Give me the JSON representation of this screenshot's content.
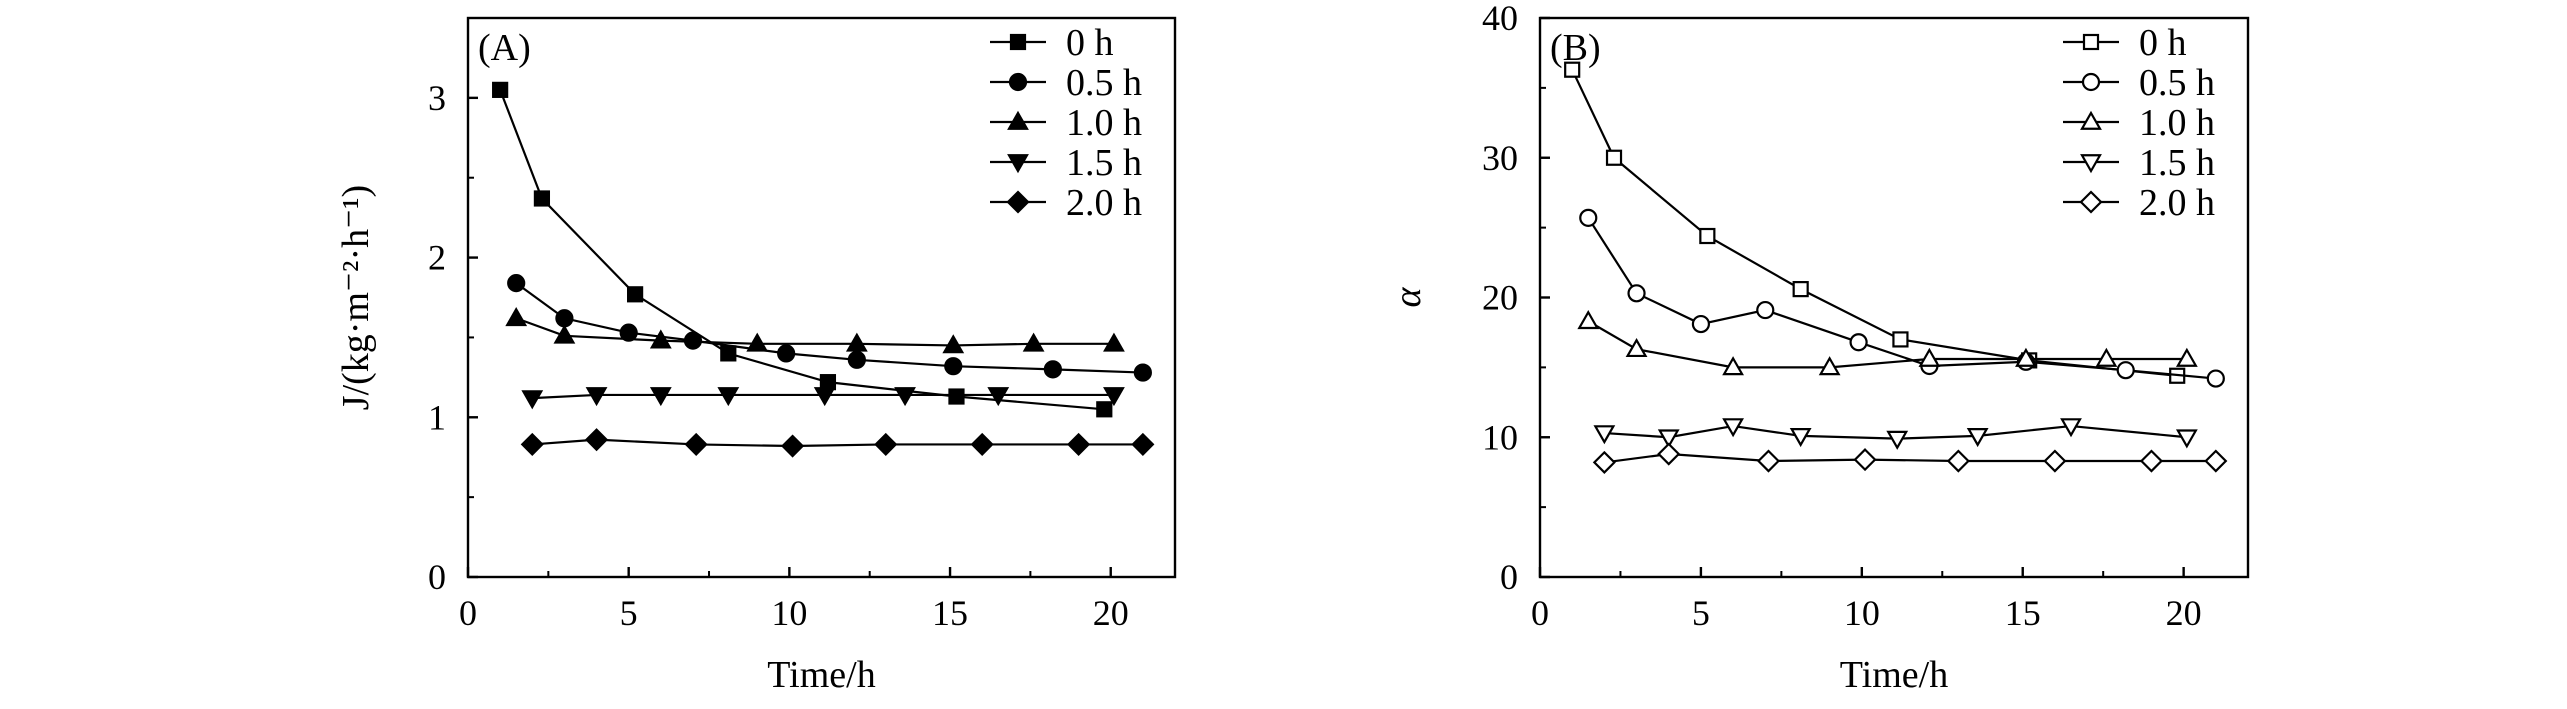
{
  "chart_data": [
    {
      "type": "line",
      "panel_label": "(A)",
      "xlabel": "Time/h",
      "ylabel": "J/(kg·m⁻²·h⁻¹)",
      "xlim": [
        0,
        22
      ],
      "ylim": [
        0,
        3.5
      ],
      "xticks": [
        0,
        5,
        10,
        15,
        20
      ],
      "yticks": [
        0,
        1,
        2,
        3
      ],
      "legend_position": "top-right",
      "series": [
        {
          "name": "0 h",
          "marker": "square",
          "filled": true,
          "x": [
            1.0,
            2.3,
            5.2,
            8.1,
            11.2,
            15.2,
            19.8
          ],
          "y": [
            3.05,
            2.37,
            1.77,
            1.4,
            1.22,
            1.13,
            1.05
          ]
        },
        {
          "name": "0.5 h",
          "marker": "circle",
          "filled": true,
          "x": [
            1.5,
            3.0,
            5.0,
            7.0,
            9.9,
            12.1,
            15.1,
            18.2,
            21.0
          ],
          "y": [
            1.84,
            1.62,
            1.53,
            1.48,
            1.4,
            1.36,
            1.32,
            1.3,
            1.28
          ]
        },
        {
          "name": "1.0 h",
          "marker": "triangle-up",
          "filled": true,
          "x": [
            1.5,
            3.0,
            6.0,
            9.0,
            12.1,
            15.1,
            17.6,
            20.1
          ],
          "y": [
            1.62,
            1.51,
            1.48,
            1.46,
            1.46,
            1.45,
            1.46,
            1.46
          ]
        },
        {
          "name": "1.5 h",
          "marker": "triangle-down",
          "filled": true,
          "x": [
            2.0,
            4.0,
            6.0,
            8.1,
            11.1,
            13.6,
            16.5,
            20.1
          ],
          "y": [
            1.12,
            1.14,
            1.14,
            1.14,
            1.14,
            1.14,
            1.14,
            1.14
          ]
        },
        {
          "name": "2.0 h",
          "marker": "diamond",
          "filled": true,
          "x": [
            2.0,
            4.0,
            7.1,
            10.1,
            13.0,
            16.0,
            19.0,
            21.0
          ],
          "y": [
            0.83,
            0.86,
            0.83,
            0.82,
            0.83,
            0.83,
            0.83,
            0.83
          ]
        }
      ]
    },
    {
      "type": "line",
      "panel_label": "(B)",
      "xlabel": "Time/h",
      "ylabel": "α",
      "xlim": [
        0,
        22
      ],
      "ylim": [
        0,
        40
      ],
      "xticks": [
        0,
        5,
        10,
        15,
        20
      ],
      "yticks": [
        0,
        10,
        20,
        30,
        40
      ],
      "legend_position": "top-right",
      "series": [
        {
          "name": "0 h",
          "marker": "square",
          "filled": false,
          "x": [
            1.0,
            2.3,
            5.2,
            8.1,
            11.2,
            15.2,
            19.8
          ],
          "y": [
            36.3,
            30.0,
            24.4,
            20.6,
            17.0,
            15.5,
            14.4
          ]
        },
        {
          "name": "0.5 h",
          "marker": "circle",
          "filled": false,
          "x": [
            1.5,
            3.0,
            5.0,
            7.0,
            9.9,
            12.1,
            15.1,
            18.2,
            21.0
          ],
          "y": [
            25.7,
            20.3,
            18.1,
            19.1,
            16.8,
            15.1,
            15.4,
            14.8,
            14.2
          ]
        },
        {
          "name": "1.0 h",
          "marker": "triangle-up",
          "filled": false,
          "x": [
            1.5,
            3.0,
            6.0,
            9.0,
            12.1,
            15.1,
            17.6,
            20.1
          ],
          "y": [
            18.3,
            16.3,
            15.0,
            15.0,
            15.6,
            15.6,
            15.6,
            15.6
          ]
        },
        {
          "name": "1.5 h",
          "marker": "triangle-down",
          "filled": false,
          "x": [
            2.0,
            4.0,
            6.0,
            8.1,
            11.1,
            13.6,
            16.5,
            20.1
          ],
          "y": [
            10.3,
            10.0,
            10.8,
            10.1,
            9.9,
            10.1,
            10.8,
            10.0
          ]
        },
        {
          "name": "2.0 h",
          "marker": "diamond",
          "filled": false,
          "x": [
            2.0,
            4.0,
            7.1,
            10.1,
            13.0,
            16.0,
            19.0,
            21.0
          ],
          "y": [
            8.2,
            8.8,
            8.3,
            8.4,
            8.3,
            8.3,
            8.3,
            8.3
          ]
        }
      ]
    }
  ]
}
